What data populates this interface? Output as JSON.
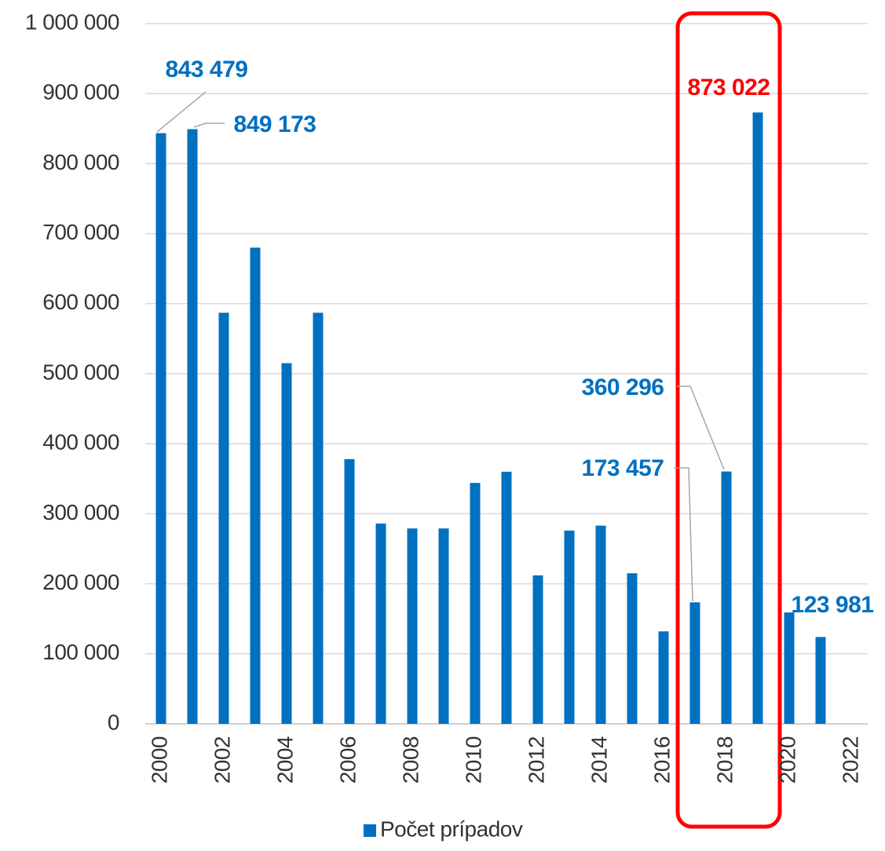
{
  "chart_data": {
    "type": "bar",
    "x": [
      2000,
      2001,
      2002,
      2003,
      2004,
      2005,
      2006,
      2007,
      2008,
      2009,
      2010,
      2011,
      2012,
      2013,
      2014,
      2015,
      2016,
      2017,
      2018,
      2019,
      2020,
      2021
    ],
    "series": [
      {
        "name": "Počet prípadov",
        "color": "#0070c0",
        "values": [
          843479,
          849173,
          587000,
          680000,
          515000,
          587000,
          378000,
          286000,
          279000,
          279000,
          344000,
          360000,
          212000,
          276000,
          283000,
          215000,
          132000,
          173457,
          360296,
          873022,
          159000,
          123981
        ],
        "value_labels": [
          "843 479",
          "849 173",
          null,
          null,
          null,
          null,
          null,
          null,
          null,
          null,
          null,
          null,
          null,
          null,
          null,
          null,
          null,
          "173 457",
          "360 296",
          "873 022",
          null,
          "123 981"
        ]
      }
    ],
    "xlim": [
      1999.5,
      2022.5
    ],
    "xticks": [
      2000,
      2002,
      2004,
      2006,
      2008,
      2010,
      2012,
      2014,
      2016,
      2018,
      2020,
      2022
    ],
    "ylim": [
      0,
      1000000
    ],
    "yticks": [
      0,
      {
        "value": 100000,
        "label": "100 000"
      },
      {
        "value": 200000,
        "label": "200 000"
      },
      {
        "value": 300000,
        "label": "300 000"
      },
      {
        "value": 400000,
        "label": "400 000"
      },
      {
        "value": 500000,
        "label": "500 000"
      },
      {
        "value": 600000,
        "label": "600 000"
      },
      {
        "value": 700000,
        "label": "700 000"
      },
      {
        "value": 800000,
        "label": "800 000"
      },
      {
        "value": 900000,
        "label": "900 000"
      },
      {
        "value": 1000000,
        "label": "1 000 000"
      }
    ],
    "grid": true,
    "legend": "bottom",
    "highlight": {
      "x": 2019,
      "color": "#ff0000"
    }
  }
}
